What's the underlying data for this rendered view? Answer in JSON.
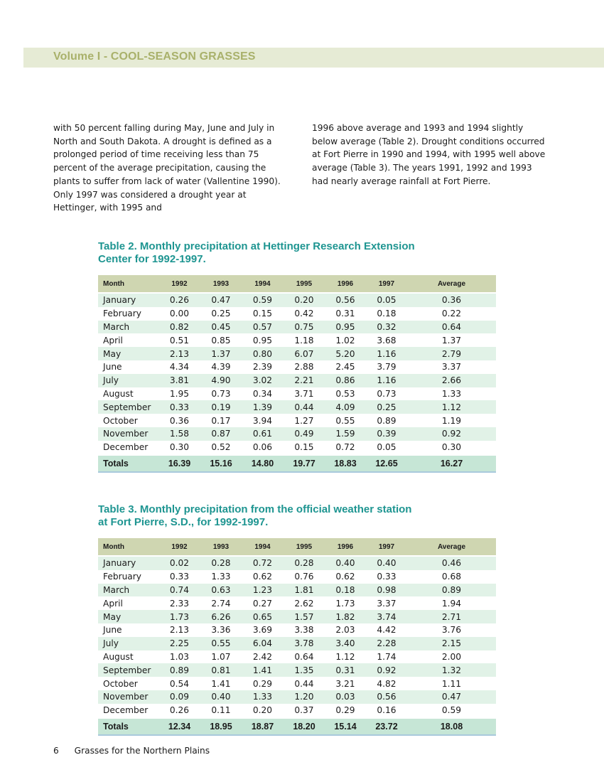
{
  "header": {
    "title": "Volume I - COOL-SEASON GRASSES"
  },
  "body_text": {
    "left": "with 50 percent falling during May, June and July in North and South Dakota. A drought is defined as a prolonged period of time receiving less than 75 percent of the average precipitation, causing the plants to suffer from lack of water (Vallentine 1990). Only 1997 was considered a drought year at Hettinger, with 1995 and",
    "right": "1996 above average and 1993 and 1994 slightly below average (Table 2). Drought conditions occurred at Fort Pierre in 1990 and 1994, with 1995 well above average (Table 3). The years 1991, 1992 and 1993 had nearly average rainfall at Fort Pierre."
  },
  "tables": [
    {
      "title_line1": "Table 2. Monthly precipitation at Hettinger Research Extension",
      "title_line2": "Center for 1992-1997.",
      "columns": [
        "Month",
        "1992",
        "1993",
        "1994",
        "1995",
        "1996",
        "1997",
        "Average"
      ],
      "rows": [
        [
          "January",
          "0.26",
          "0.47",
          "0.59",
          "0.20",
          "0.56",
          "0.05",
          "0.36"
        ],
        [
          "February",
          "0.00",
          "0.25",
          "0.15",
          "0.42",
          "0.31",
          "0.18",
          "0.22"
        ],
        [
          "March",
          "0.82",
          "0.45",
          "0.57",
          "0.75",
          "0.95",
          "0.32",
          "0.64"
        ],
        [
          "April",
          "0.51",
          "0.85",
          "0.95",
          "1.18",
          "1.02",
          "3.68",
          "1.37"
        ],
        [
          "May",
          "2.13",
          "1.37",
          "0.80",
          "6.07",
          "5.20",
          "1.16",
          "2.79"
        ],
        [
          "June",
          "4.34",
          "4.39",
          "2.39",
          "2.88",
          "2.45",
          "3.79",
          "3.37"
        ],
        [
          "July",
          "3.81",
          "4.90",
          "3.02",
          "2.21",
          "0.86",
          "1.16",
          "2.66"
        ],
        [
          "August",
          "1.95",
          "0.73",
          "0.34",
          "3.71",
          "0.53",
          "0.73",
          "1.33"
        ],
        [
          "September",
          "0.33",
          "0.19",
          "1.39",
          "0.44",
          "4.09",
          "0.25",
          "1.12"
        ],
        [
          "October",
          "0.36",
          "0.17",
          "3.94",
          "1.27",
          "0.55",
          "0.89",
          "1.19"
        ],
        [
          "November",
          "1.58",
          "0.87",
          "0.61",
          "0.49",
          "1.59",
          "0.39",
          "0.92"
        ],
        [
          "December",
          "0.30",
          "0.52",
          "0.06",
          "0.15",
          "0.72",
          "0.05",
          "0.30"
        ]
      ],
      "totals": [
        "Totals",
        "16.39",
        "15.16",
        "14.80",
        "19.77",
        "18.83",
        "12.65",
        "16.27"
      ]
    },
    {
      "title_line1": "Table 3. Monthly precipitation from the official weather station",
      "title_line2": "at Fort Pierre, S.D., for 1992-1997.",
      "columns": [
        "Month",
        "1992",
        "1993",
        "1994",
        "1995",
        "1996",
        "1997",
        "Average"
      ],
      "rows": [
        [
          "January",
          "0.02",
          "0.28",
          "0.72",
          "0.28",
          "0.40",
          "0.40",
          "0.46"
        ],
        [
          "February",
          "0.33",
          "1.33",
          "0.62",
          "0.76",
          "0.62",
          "0.33",
          "0.68"
        ],
        [
          "March",
          "0.74",
          "0.63",
          "1.23",
          "1.81",
          "0.18",
          "0.98",
          "0.89"
        ],
        [
          "April",
          "2.33",
          "2.74",
          "0.27",
          "2.62",
          "1.73",
          "3.37",
          "1.94"
        ],
        [
          "May",
          "1.73",
          "6.26",
          "0.65",
          "1.57",
          "1.82",
          "3.74",
          "2.71"
        ],
        [
          "June",
          "2.13",
          "3.36",
          "3.69",
          "3.38",
          "2.03",
          "4.42",
          "3.76"
        ],
        [
          "July",
          "2.25",
          "0.55",
          "6.04",
          "3.78",
          "3.40",
          "2.28",
          "2.15"
        ],
        [
          "August",
          "1.03",
          "1.07",
          "2.42",
          "0.64",
          "1.12",
          "1.74",
          "2.00"
        ],
        [
          "September",
          "0.89",
          "0.81",
          "1.41",
          "1.35",
          "0.31",
          "0.92",
          "1.32"
        ],
        [
          "October",
          "0.54",
          "1.41",
          "0.29",
          "0.44",
          "3.21",
          "4.82",
          "1.11"
        ],
        [
          "November",
          "0.09",
          "0.40",
          "1.33",
          "1.20",
          "0.03",
          "0.56",
          "0.47"
        ],
        [
          "December",
          "0.26",
          "0.11",
          "0.20",
          "0.37",
          "0.29",
          "0.16",
          "0.59"
        ]
      ],
      "totals": [
        "Totals",
        "12.34",
        "18.95",
        "18.87",
        "18.20",
        "15.14",
        "23.72",
        "18.08"
      ]
    }
  ],
  "footer": {
    "page_number": "6",
    "publication": "Grasses for the Northern Plains"
  },
  "colors": {
    "header_band": "#e6ebd5",
    "header_text": "#a9b16b",
    "table_title": "#1e9591",
    "table_header": "#cfd6b1",
    "row_stripe": "#e1f2e7",
    "totals_row": "#c6e6d6"
  }
}
